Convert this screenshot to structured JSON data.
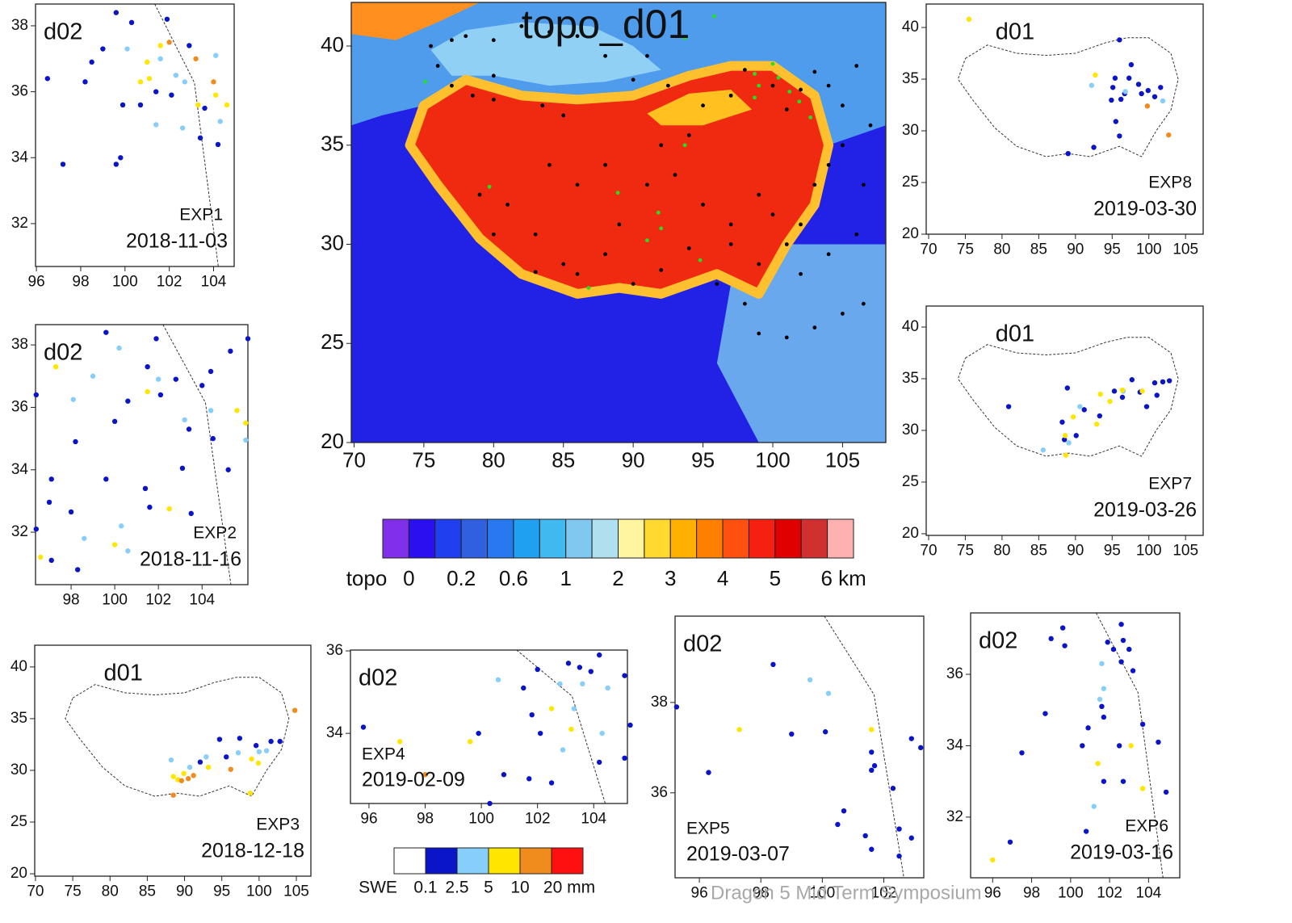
{
  "main": {
    "title": "topo_d01",
    "xlim": [
      69.8,
      108.1
    ],
    "ylim": [
      20,
      42.2
    ],
    "xticks": [
      70,
      75,
      80,
      85,
      90,
      95,
      100,
      105
    ],
    "yticks": [
      20,
      25,
      30,
      35,
      40
    ],
    "series": [
      {
        "color": "#000000",
        "lon": [
          75.5,
          76,
          77,
          78,
          80,
          82,
          84,
          86,
          88,
          80,
          83.5,
          85,
          80,
          77,
          78.5,
          90,
          91,
          92.5,
          95,
          97,
          98,
          100,
          101,
          102,
          103,
          104,
          105,
          106,
          107,
          106.5,
          105,
          104,
          103,
          102,
          101,
          100,
          99,
          97,
          95,
          93,
          91,
          89,
          88,
          86,
          85,
          83,
          81,
          79,
          80,
          83,
          90,
          92,
          94,
          96,
          98,
          99,
          101,
          103,
          105,
          106.5,
          102,
          104,
          106,
          97,
          99,
          92,
          94,
          88,
          86,
          84
        ],
        "lat": [
          40,
          39,
          40.3,
          40.5,
          40.3,
          41,
          40.7,
          40.5,
          39.5,
          38.5,
          37,
          36.5,
          37.3,
          38,
          37.5,
          38.3,
          39.5,
          38,
          37,
          37.5,
          38.8,
          38,
          36.8,
          37.8,
          38.7,
          38,
          37,
          39,
          36,
          33,
          35,
          34,
          33,
          31,
          30,
          31.5,
          32.5,
          31,
          32,
          33.5,
          33,
          31,
          29.5,
          28.5,
          29,
          30.5,
          32,
          32.5,
          30.5,
          28.6,
          28,
          28.7,
          29.8,
          28,
          27,
          25.5,
          25.3,
          25.8,
          26.5,
          27,
          28.5,
          29.5,
          30.5,
          30,
          29,
          35,
          35.5,
          34,
          33,
          34
        ]
      },
      {
        "color": "#22e022",
        "lon": [
          75.1,
          79.7,
          88.9,
          91.8,
          92.0,
          91.0,
          93.7,
          95.8,
          93.7,
          94.8,
          86.8,
          98.7,
          99.0,
          100.0,
          100.4,
          101.2,
          101.9,
          102.7,
          98.7
        ],
        "lat": [
          38.2,
          32.9,
          32.6,
          31.6,
          30.8,
          30.2,
          40.4,
          41.5,
          35.0,
          29.2,
          27.8,
          38.6,
          38.0,
          39.1,
          38.4,
          37.7,
          37.2,
          36.4,
          37.4
        ]
      }
    ]
  },
  "topo_legend": {
    "label": "topo",
    "ticks": [
      "0",
      "0.2",
      "0.6",
      "1",
      "2",
      "3",
      "4",
      "5",
      "6 km"
    ],
    "colors": [
      "#8030e8",
      "#2a10f0",
      "#2040f0",
      "#3060e0",
      "#2878f0",
      "#20a0f0",
      "#40b8f0",
      "#80c8f0",
      "#b0e0f0",
      "#fff5a0",
      "#ffd830",
      "#ffb000",
      "#ff8000",
      "#ff5010",
      "#f52010",
      "#e00000",
      "#d03030",
      "#ffb0b0"
    ]
  },
  "swe_legend": {
    "label": "SWE",
    "ticks": [
      "0.1",
      "2.5",
      "5",
      "10",
      "20 mm"
    ],
    "colors": [
      "#ffffff",
      "#0a14c8",
      "#87cefa",
      "#ffe600",
      "#f08c1e",
      "#ff1010"
    ]
  },
  "panels": [
    {
      "domain": "d02",
      "exp": "EXP1",
      "date": "2018-11-03",
      "xlim": [
        95.96,
        104.93
      ],
      "ylim": [
        30.7,
        38.66
      ],
      "xticks": [
        96,
        98,
        100,
        102,
        104
      ],
      "yticks": [
        32,
        34,
        36,
        38
      ],
      "series": [
        {
          "color": "#0a14c8",
          "lon": [
            96.5,
            97.2,
            98.2,
            98.5,
            99.0,
            99.6,
            100.3,
            99.6,
            99.8,
            99.9,
            100.7,
            101.9,
            101.4,
            102.1,
            102.9,
            103.6,
            103.4,
            104.2
          ],
          "lat": [
            36.4,
            33.8,
            36.3,
            36.9,
            37.3,
            38.4,
            38.1,
            33.8,
            34.0,
            35.6,
            35.6,
            38.2,
            36.0,
            35.9,
            37.4,
            35.5,
            34.6,
            34.4
          ]
        },
        {
          "color": "#87cefa",
          "lon": [
            100.1,
            101.6,
            102.3,
            102.7,
            104.1,
            101.4,
            102.6,
            104.3
          ],
          "lat": [
            37.3,
            37.0,
            36.5,
            36.3,
            37.1,
            35.0,
            34.9,
            35.1
          ]
        },
        {
          "color": "#ffe600",
          "lon": [
            101.0,
            101.6,
            101.1,
            100.7,
            103.3,
            104.6,
            104.1
          ],
          "lat": [
            36.9,
            37.4,
            36.4,
            36.3,
            35.6,
            35.6,
            35.9
          ]
        },
        {
          "color": "#f08c1e",
          "lon": [
            103.2,
            104.0,
            102.0
          ],
          "lat": [
            37.0,
            36.3,
            37.5
          ]
        }
      ]
    },
    {
      "domain": "d02",
      "exp": "EXP2",
      "date": "2018-11-16",
      "xlim": [
        96.37,
        106.1
      ],
      "ylim": [
        30.32,
        38.65
      ],
      "xticks": [
        98,
        100,
        102,
        104
      ],
      "yticks": [
        32,
        34,
        36,
        38
      ],
      "series": [
        {
          "color": "#0a14c8",
          "lon": [
            96.4,
            99.6,
            98.2,
            97.1,
            97.0,
            98.0,
            96.4,
            97.1,
            98.3,
            99.6,
            100.0,
            100.6,
            101.5,
            101.9,
            101.4,
            101.6,
            103.1,
            103.5,
            104.0,
            104.4,
            105.3,
            106.1,
            105.2,
            102.1,
            103.4,
            104.5,
            102.8
          ],
          "lat": [
            36.4,
            38.4,
            34.9,
            33.7,
            32.96,
            32.65,
            32.1,
            31.1,
            30.8,
            33.7,
            35.55,
            36.2,
            37.3,
            38.2,
            33.4,
            32.8,
            34.05,
            32.6,
            36.7,
            37.15,
            37.8,
            38.2,
            34.0,
            36.4,
            35.3,
            35.0,
            36.9
          ]
        },
        {
          "color": "#87cefa",
          "lon": [
            98.1,
            99.0,
            100.2,
            98.6,
            100.3,
            100.6,
            103.2,
            104.4,
            106.0,
            102.0
          ],
          "lat": [
            36.25,
            37.0,
            37.9,
            31.8,
            32.2,
            31.4,
            35.6,
            35.9,
            34.95,
            36.9
          ]
        },
        {
          "color": "#ffe600",
          "lon": [
            97.3,
            101.5,
            102.5,
            100.0,
            96.6,
            105.6,
            106.0
          ],
          "lat": [
            37.3,
            36.5,
            32.75,
            31.6,
            31.2,
            35.9,
            35.5
          ]
        }
      ]
    },
    {
      "domain": "d01",
      "exp": "EXP3",
      "date": "2018-12-18",
      "xlim": [
        69.9,
        106.95
      ],
      "ylim": [
        19.77,
        42.1
      ],
      "xticks": [
        70,
        75,
        80,
        85,
        90,
        95,
        100,
        105
      ],
      "yticks": [
        20,
        25,
        30,
        35,
        40
      ],
      "series": [
        {
          "color": "#0a14c8",
          "lon": [
            94.7,
            97.4,
            99.6,
            101.6,
            102.8,
            92.1,
            95.6
          ],
          "lat": [
            33.0,
            33.1,
            32.4,
            32.8,
            32.8,
            30.8,
            31.3
          ]
        },
        {
          "color": "#87cefa",
          "lon": [
            88.2,
            90.7,
            92.9,
            97.2,
            100.0,
            101.0
          ],
          "lat": [
            31.0,
            30.3,
            31.3,
            31.7,
            31.8,
            31.9
          ]
        },
        {
          "color": "#ffe600",
          "lon": [
            88.5,
            89.1,
            89.9,
            93.2,
            99.0,
            99.9,
            98.8
          ],
          "lat": [
            29.4,
            29.1,
            29.7,
            30.3,
            31.1,
            30.7,
            27.8
          ]
        },
        {
          "color": "#f08c1e",
          "lon": [
            88.5,
            89.6,
            90.5,
            91.2,
            96.2,
            104.8
          ],
          "lat": [
            27.6,
            29.0,
            29.2,
            29.5,
            30.1,
            35.8
          ]
        }
      ]
    },
    {
      "domain": "d02",
      "exp": "EXP4",
      "date": "2019-02-09",
      "xlim": [
        95.34,
        105.2
      ],
      "ylim": [
        32.3,
        36.02
      ],
      "xticks": [
        96,
        98,
        100,
        102,
        104
      ],
      "yticks": [
        34,
        36
      ],
      "series": [
        {
          "color": "#0a14c8",
          "lon": [
            95.8,
            99.9,
            100.3,
            100.8,
            101.5,
            102.0,
            101.8,
            101.7,
            102.5,
            102.1,
            103.1,
            103.5,
            103.9,
            104.2,
            105.1,
            104.2,
            105.1,
            105.3
          ],
          "lat": [
            34.15,
            34.0,
            32.3,
            33.0,
            35.1,
            35.55,
            34.45,
            32.9,
            32.8,
            34.0,
            35.7,
            35.6,
            35.5,
            35.9,
            35.4,
            33.3,
            33.4,
            34.2
          ]
        },
        {
          "color": "#87cefa",
          "lon": [
            100.6,
            102.8,
            103.6,
            103.3,
            104.5,
            104.3,
            102.9
          ],
          "lat": [
            35.3,
            35.2,
            35.2,
            34.6,
            35.1,
            34.0,
            33.6
          ]
        },
        {
          "color": "#ffe600",
          "lon": [
            97.1,
            99.6,
            102.5,
            103.2
          ],
          "lat": [
            33.8,
            33.8,
            34.6,
            34.1
          ]
        },
        {
          "color": "#f08c1e",
          "lon": [
            98.0
          ],
          "lat": [
            33.0
          ]
        }
      ]
    },
    {
      "domain": "d02",
      "exp": "EXP5",
      "date": "2019-03-07",
      "xlim": [
        95.21,
        103.3
      ],
      "ylim": [
        34.12,
        39.91
      ],
      "xticks": [
        96,
        98,
        100,
        102
      ],
      "yticks": [
        36,
        38
      ],
      "series": [
        {
          "color": "#0a14c8",
          "lon": [
            95.26,
            96.3,
            98.4,
            99.0,
            100.1,
            100.7,
            100.5,
            101.6,
            101.7,
            101.6,
            102.3,
            102.9,
            103.2,
            101.4,
            101.6,
            102.5,
            102.9,
            102.5
          ],
          "lat": [
            37.9,
            36.45,
            38.84,
            37.3,
            37.35,
            35.6,
            35.3,
            36.9,
            36.6,
            36.5,
            36.1,
            37.2,
            37.0,
            35.05,
            34.75,
            35.2,
            35.0,
            34.6
          ]
        },
        {
          "color": "#87cefa",
          "lon": [
            99.6,
            100.2
          ],
          "lat": [
            38.5,
            38.2
          ]
        },
        {
          "color": "#ffe600",
          "lon": [
            97.3,
            101.6
          ],
          "lat": [
            37.4,
            37.4
          ]
        }
      ]
    },
    {
      "domain": "d02",
      "exp": "EXP6",
      "date": "2019-03-16",
      "xlim": [
        94.87,
        105.6
      ],
      "ylim": [
        30.3,
        37.72
      ],
      "xticks": [
        96,
        98,
        100,
        102,
        104
      ],
      "yticks": [
        32,
        34,
        36
      ],
      "series": [
        {
          "color": "#0a14c8",
          "lon": [
            99.0,
            99.6,
            99.7,
            101.9,
            102.2,
            102.6,
            102.7,
            103.0,
            102.6,
            103.2,
            98.7,
            97.5,
            100.6,
            100.9,
            101.6,
            101.7,
            102.5,
            103.7,
            104.5,
            101.7,
            102.7,
            104.9,
            100.8,
            96.9
          ],
          "lat": [
            37.0,
            37.3,
            36.8,
            36.9,
            36.7,
            37.4,
            36.95,
            36.7,
            36.35,
            36.1,
            34.9,
            33.8,
            34.0,
            34.5,
            35.1,
            34.8,
            34.0,
            34.6,
            34.1,
            33.0,
            33.0,
            32.7,
            31.6,
            31.3
          ]
        },
        {
          "color": "#87cefa",
          "lon": [
            101.6,
            101.7,
            101.5,
            101.2
          ],
          "lat": [
            36.3,
            35.6,
            35.3,
            32.3
          ]
        },
        {
          "color": "#ffe600",
          "lon": [
            101.4,
            103.1,
            103.7,
            96.0
          ],
          "lat": [
            33.5,
            34.0,
            32.8,
            30.8
          ]
        }
      ]
    },
    {
      "domain": "d01",
      "exp": "EXP7",
      "date": "2019-03-26",
      "xlim": [
        69.67,
        107.4
      ],
      "ylim": [
        19.84,
        42.03
      ],
      "xticks": [
        70,
        75,
        80,
        85,
        90,
        95,
        100,
        105
      ],
      "yticks": [
        20,
        25,
        30,
        35,
        40
      ],
      "series": [
        {
          "color": "#0a14c8",
          "lon": [
            80.9,
            88.9,
            91.2,
            93.3,
            88.2,
            90.1,
            88.5,
            95.3,
            96.4,
            97.7,
            98.8,
            99.7,
            100.8,
            101.9,
            102.8,
            101.1
          ],
          "lat": [
            32.3,
            34.1,
            32.0,
            31.4,
            30.8,
            29.5,
            29.1,
            33.8,
            33.2,
            34.9,
            33.7,
            32.3,
            34.6,
            34.7,
            34.8,
            33.4
          ]
        },
        {
          "color": "#87cefa",
          "lon": [
            85.6,
            89.1,
            90.6,
            96.5
          ],
          "lat": [
            28.1,
            28.8,
            32.3,
            33.8
          ]
        },
        {
          "color": "#ffe600",
          "lon": [
            88.6,
            89.7,
            92.9,
            94.7,
            96.4,
            99.1,
            93.4,
            88.7
          ],
          "lat": [
            29.5,
            31.3,
            30.6,
            32.8,
            33.9,
            33.8,
            33.5,
            27.6
          ]
        }
      ]
    },
    {
      "domain": "d01",
      "exp": "EXP8",
      "date": "2019-03-30",
      "xlim": [
        69.67,
        107.4
      ],
      "ylim": [
        20,
        42.27
      ],
      "xticks": [
        70,
        75,
        80,
        85,
        90,
        95,
        100,
        105
      ],
      "yticks": [
        20,
        25,
        30,
        35,
        40
      ],
      "series": [
        {
          "color": "#0a14c8",
          "lon": [
            96.0,
            97.6,
            95.4,
            97.3,
            98.6,
            95.1,
            96.7,
            99.0,
            99.9,
            101.6,
            94.9,
            96.2,
            95.5,
            96.0,
            92.5,
            89.0,
            100.8
          ],
          "lat": [
            38.8,
            36.4,
            35.1,
            35.1,
            34.5,
            34.2,
            33.6,
            33.6,
            33.9,
            34.2,
            32.97,
            33.05,
            30.9,
            29.5,
            28.4,
            27.8,
            33.3
          ]
        },
        {
          "color": "#87cefa",
          "lon": [
            92.2,
            96.8,
            101.9
          ],
          "lat": [
            34.4,
            33.8,
            32.9
          ]
        },
        {
          "color": "#ffe600",
          "lon": [
            75.5,
            92.7
          ],
          "lat": [
            40.8,
            35.4
          ]
        },
        {
          "color": "#f08c1e",
          "lon": [
            99.8,
            102.7
          ],
          "lat": [
            32.4,
            29.6
          ]
        }
      ]
    }
  ],
  "footer": "Dragon 5 Mid Term Symposium"
}
